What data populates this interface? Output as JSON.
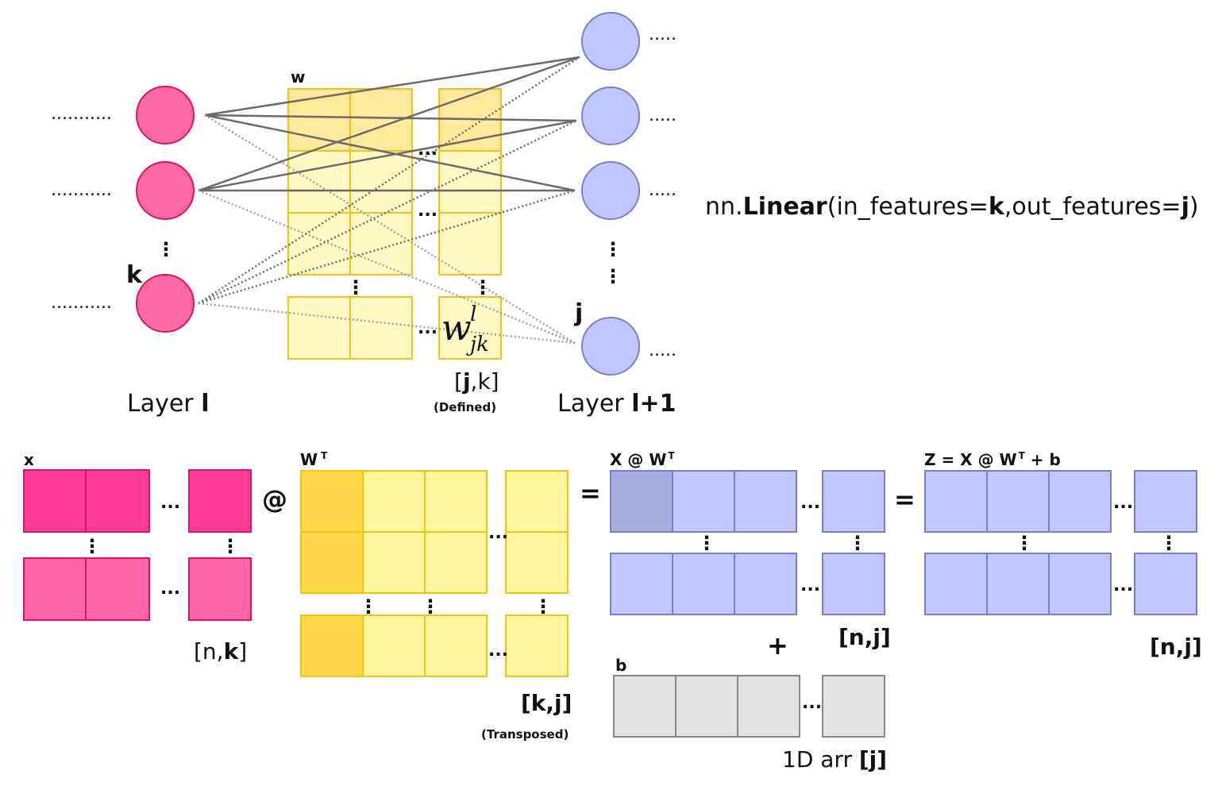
{
  "network": {
    "ellipsis_h": "...........",
    "ellipsis_short": ".....",
    "ellipsis_mid": "...",
    "vdots": "⋮",
    "layer_l_prefix": "Layer ",
    "layer_l_bold": "l",
    "layer_l1_prefix": "Layer ",
    "layer_l1_bold": "l+1",
    "k_label": "k",
    "j_label": "j",
    "w_label": "w",
    "w_symbol": "w",
    "w_super": "l",
    "w_sub": "jk",
    "shape_open": "[",
    "shape_bold": "j",
    "shape_rest": ",k]",
    "defined_note": "(Defined)"
  },
  "formula": {
    "prefix": "nn.",
    "fn": "Linear",
    "part1": "(in_features=",
    "k": "k",
    "part2": ",out_features=",
    "j": "j",
    "close": ")"
  },
  "matrices": {
    "x_title": "x",
    "x_shape_open": "[n,",
    "x_shape_bold": "k",
    "x_shape_close": "]",
    "at_op": "@",
    "wt_title": "W",
    "wt_sup": "T",
    "wt_shape": "[k,j]",
    "transposed_note": "(Transposed)",
    "eq_op": "=",
    "xw_title": "X @ W",
    "xw_sup": "T",
    "xw_shape": "[n,j]",
    "plus_op": "+",
    "b_title": "b",
    "b_shape_prefix": "1D arr ",
    "b_shape_bold": "[j]",
    "eq2_op": "=",
    "z_title_a": "Z = X @ W",
    "z_sup": "T",
    "z_title_b": " + b",
    "z_shape": "[n,j]",
    "ellipsis": "..."
  },
  "colors": {
    "pink_node": "#ff69a6",
    "pink_dark": "#ff3d96",
    "pink_light": "#ff66a8",
    "pink_stroke": "#e0106a",
    "blue_node": "#c2c6ff",
    "blue_dark": "#a8acdd",
    "blue_stroke": "#7b80c4",
    "yellow_fill": "#fff59d",
    "yellow_dark": "#ffd747",
    "yellow_stroke": "#f2c21b",
    "gray_fill": "#e3e3e3",
    "gray_stroke": "#888888"
  }
}
